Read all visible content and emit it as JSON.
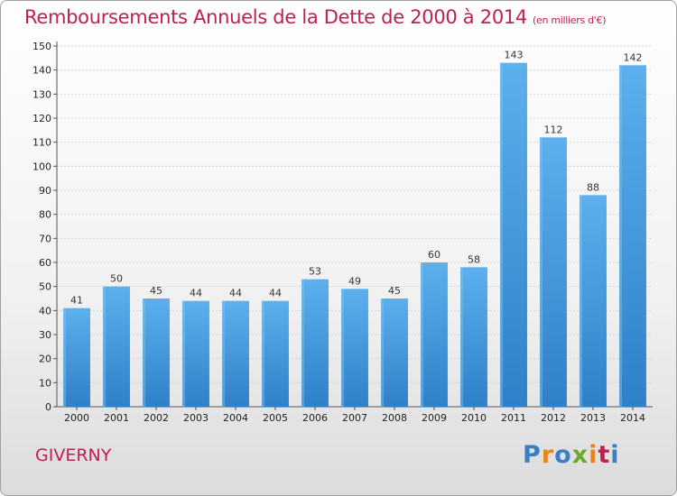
{
  "header": {
    "title": "Remboursements Annuels de la Dette de 2000 à 2014",
    "unit": "(en milliers d'€)"
  },
  "footer": {
    "town": "GIVERNY",
    "brand": "Proxiti",
    "brand_colors": [
      "#3a7fc4",
      "#e8831e",
      "#3a7fc4",
      "#6aab2e",
      "#e8831e",
      "#c0204f",
      "#3a7fc4"
    ]
  },
  "chart_data": {
    "type": "bar",
    "categories": [
      "2000",
      "2001",
      "2002",
      "2003",
      "2004",
      "2005",
      "2006",
      "2007",
      "2008",
      "2009",
      "2010",
      "2011",
      "2012",
      "2013",
      "2014"
    ],
    "values": [
      41,
      50,
      45,
      44,
      44,
      44,
      53,
      49,
      45,
      60,
      58,
      143,
      112,
      88,
      142
    ],
    "ylim": [
      0,
      150
    ],
    "ytick_step": 10,
    "grid": true,
    "bar_color": "#4a9fe0"
  }
}
